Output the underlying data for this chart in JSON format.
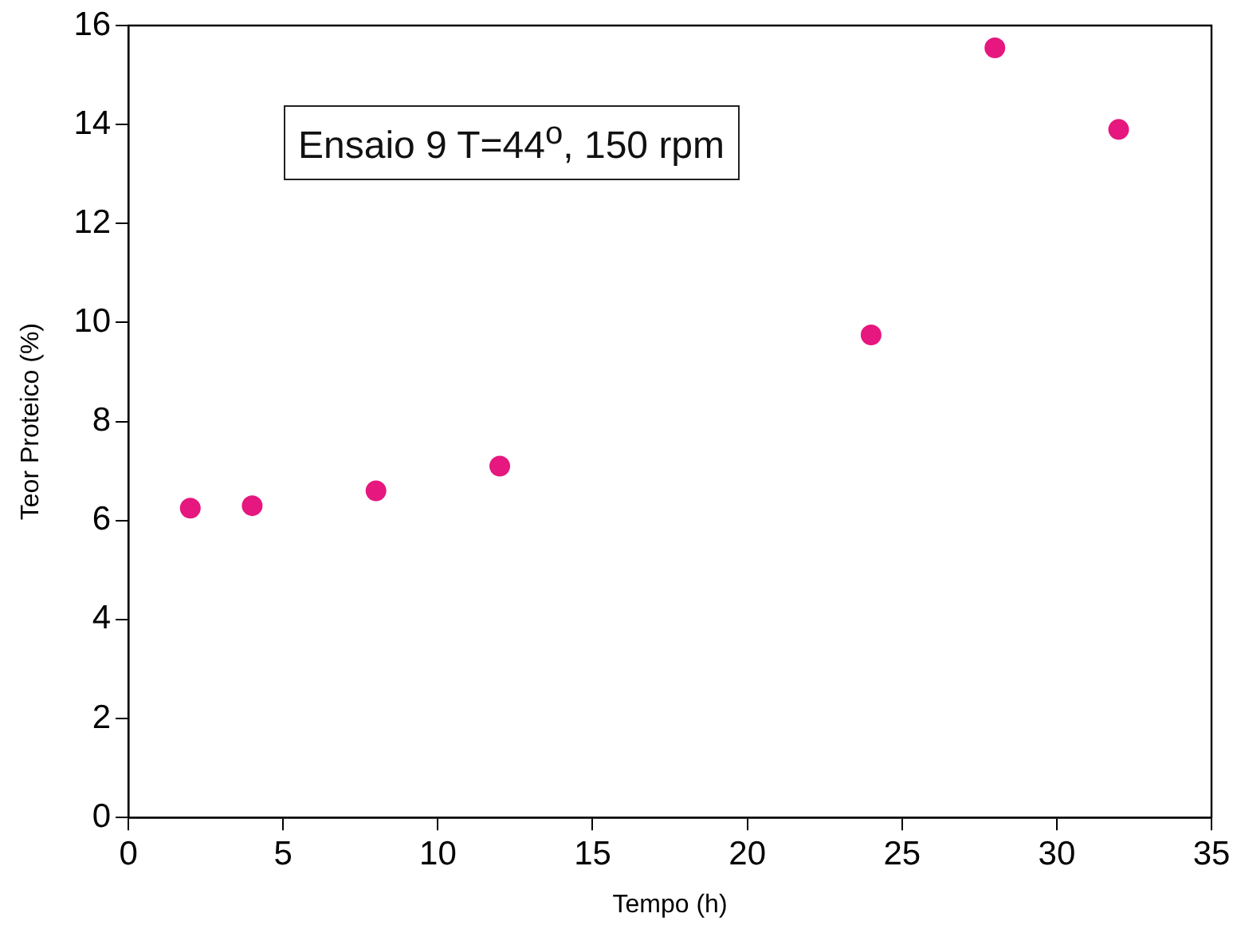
{
  "chart_data": {
    "type": "scatter",
    "xlabel": "Tempo (h)",
    "ylabel": "Teor Proteico (%)",
    "annotations": [
      "Ensaio 9 T=44$^{o}$, 150 rpm"
    ],
    "x": [
      2,
      4,
      8,
      12,
      24,
      28,
      32
    ],
    "series": [
      {
        "color": "#e6177f",
        "values": [
          6.25,
          6.3,
          6.6,
          7.1,
          9.75,
          15.55,
          13.9
        ]
      }
    ],
    "xlim": [
      0,
      35
    ],
    "xticks": [
      0,
      5,
      10,
      15,
      20,
      25,
      30,
      35
    ],
    "ylim": [
      0,
      16
    ],
    "yticks": [
      0,
      2,
      4,
      6,
      8,
      10,
      12,
      14,
      16
    ],
    "grid": false,
    "legend": false,
    "marker": "circle"
  }
}
